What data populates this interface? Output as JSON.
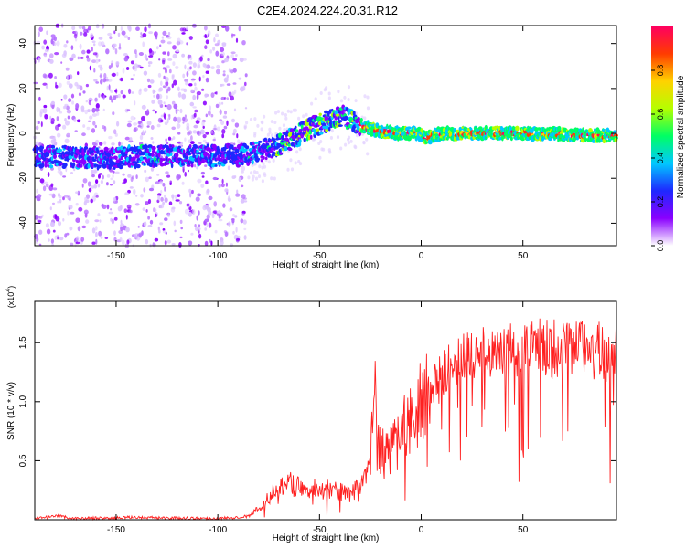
{
  "title": "C2E4.2024.224.20.31.R12",
  "chart_data": [
    {
      "type": "heatmap",
      "title": "C2E4.2024.224.20.31.R12",
      "xlabel": "Height of straight line (km)",
      "ylabel": "Frequency (Hz)",
      "xlim": [
        -190,
        96
      ],
      "ylim": [
        -50,
        48
      ],
      "xticks": [
        -150,
        -100,
        -50,
        0,
        50
      ],
      "yticks": [
        -40,
        -20,
        0,
        20,
        40
      ],
      "colorbar": {
        "label": "Normalized spectral amplitude",
        "range": [
          0,
          1
        ],
        "ticks": [
          "0.0",
          "0.2",
          "0.4",
          "0.6",
          "0.8"
        ],
        "colors": [
          "#ffffff",
          "#8a00ff",
          "#1e28ff",
          "#00c8ff",
          "#00ff64",
          "#b4ff00",
          "#ffd200",
          "#ff3c00",
          "#ff0060"
        ]
      },
      "ridge": {
        "x": [
          -190,
          -160,
          -130,
          -100,
          -85,
          -75,
          -65,
          -55,
          -45,
          -38,
          -33,
          -28,
          -20,
          -10,
          -2,
          2,
          10,
          20,
          40,
          60,
          80,
          96
        ],
        "frequency_hz": [
          -10,
          -11,
          -10,
          -10,
          -9,
          -7,
          -3,
          2,
          6,
          8,
          5,
          3,
          1,
          0,
          0,
          -2,
          0,
          0,
          0,
          0,
          -1,
          -1
        ]
      }
    },
    {
      "type": "line",
      "xlabel": "Height of straight line (km)",
      "ylabel": "SNR (10 * v/v)",
      "y_multiplier": "(x10^4)",
      "xlim": [
        -190,
        96
      ],
      "ylim": [
        0,
        1.85
      ],
      "xticks": [
        -150,
        -100,
        -50,
        0,
        50
      ],
      "yticks": [
        0.5,
        1.0,
        1.5
      ],
      "ytick_labels": [
        "0.5",
        "1.0",
        "1.5"
      ],
      "line_color": "#ff2020",
      "envelope": {
        "x": [
          -190,
          -178,
          -170,
          -140,
          -100,
          -85,
          -78,
          -72,
          -65,
          -55,
          -45,
          -35,
          -28,
          -25,
          -23,
          -21,
          -18,
          -10,
          -5,
          0,
          5,
          10,
          15,
          20,
          30,
          40,
          60,
          80,
          96
        ],
        "snr_x1e4": [
          0.01,
          0.03,
          0.01,
          0.02,
          0.01,
          0.03,
          0.12,
          0.26,
          0.3,
          0.28,
          0.25,
          0.22,
          0.3,
          0.5,
          1.2,
          0.6,
          0.55,
          0.7,
          0.9,
          1.0,
          1.1,
          1.2,
          1.3,
          1.35,
          1.4,
          1.45,
          1.45,
          1.45,
          1.4
        ]
      }
    }
  ]
}
